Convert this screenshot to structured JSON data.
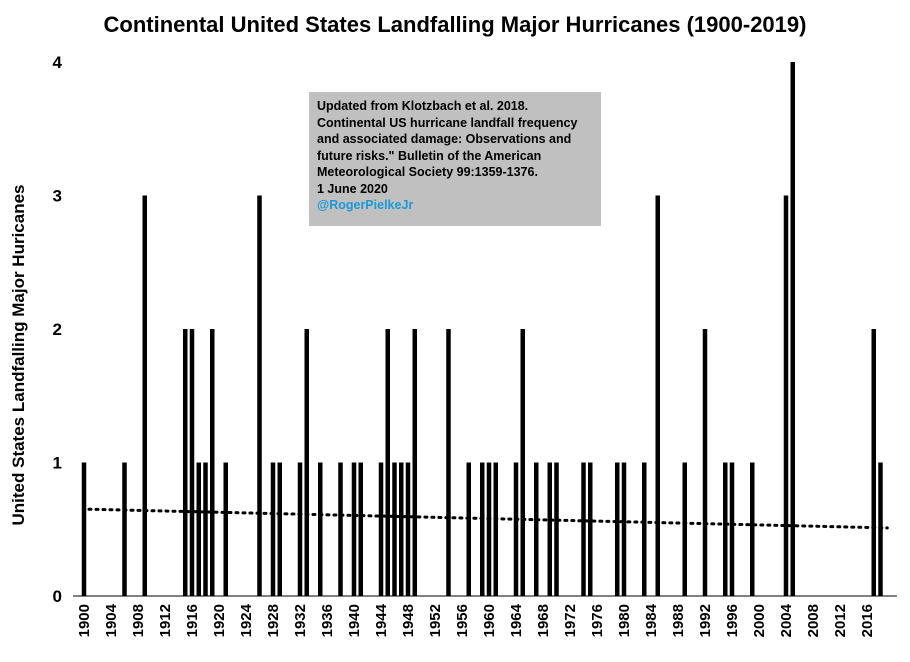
{
  "chart_data": {
    "type": "bar",
    "title": "Continental United States Landfalling Major Hurricanes (1900-2019)",
    "ylabel": "United States Landfalling Major Huricanes",
    "xlabel": "",
    "ylim": [
      0,
      4
    ],
    "yticks": [
      0,
      1,
      2,
      3,
      4
    ],
    "xlim": [
      1900,
      2019
    ],
    "xticks": [
      1900,
      1904,
      1908,
      1912,
      1916,
      1920,
      1924,
      1928,
      1932,
      1936,
      1940,
      1944,
      1948,
      1952,
      1956,
      1960,
      1964,
      1968,
      1972,
      1976,
      1980,
      1984,
      1988,
      1992,
      1996,
      2000,
      2004,
      2008,
      2012,
      2016
    ],
    "bar_color": "#000000",
    "trendline": {
      "style": "dotted",
      "x": [
        1900,
        2019
      ],
      "y": [
        0.65,
        0.51
      ]
    },
    "grid": false,
    "legend": "none",
    "annotation": {
      "lines": [
        "Updated from Klotzbach et al. 2018.",
        "Continental US hurricane landfall frequency",
        "and associated damage: Observations and",
        "future risks.\" Bulletin of the American",
        "Meteorological Society 99:1359-1376.",
        "1 June 2020"
      ],
      "handle": "@RogerPielkeJr",
      "handle_color": "#1a9bd7",
      "background": "#c0c0c0"
    },
    "points": [
      {
        "x": 1900,
        "y": 1
      },
      {
        "x": 1906,
        "y": 1
      },
      {
        "x": 1909,
        "y": 3
      },
      {
        "x": 1915,
        "y": 2
      },
      {
        "x": 1916,
        "y": 2
      },
      {
        "x": 1917,
        "y": 1
      },
      {
        "x": 1918,
        "y": 1
      },
      {
        "x": 1919,
        "y": 2
      },
      {
        "x": 1921,
        "y": 1
      },
      {
        "x": 1926,
        "y": 3
      },
      {
        "x": 1928,
        "y": 1
      },
      {
        "x": 1929,
        "y": 1
      },
      {
        "x": 1932,
        "y": 1
      },
      {
        "x": 1933,
        "y": 2
      },
      {
        "x": 1935,
        "y": 1
      },
      {
        "x": 1938,
        "y": 1
      },
      {
        "x": 1940,
        "y": 1
      },
      {
        "x": 1941,
        "y": 1
      },
      {
        "x": 1944,
        "y": 1
      },
      {
        "x": 1945,
        "y": 2
      },
      {
        "x": 1946,
        "y": 1
      },
      {
        "x": 1947,
        "y": 1
      },
      {
        "x": 1948,
        "y": 1
      },
      {
        "x": 1949,
        "y": 2
      },
      {
        "x": 1954,
        "y": 2
      },
      {
        "x": 1957,
        "y": 1
      },
      {
        "x": 1959,
        "y": 1
      },
      {
        "x": 1960,
        "y": 1
      },
      {
        "x": 1961,
        "y": 1
      },
      {
        "x": 1964,
        "y": 1
      },
      {
        "x": 1965,
        "y": 2
      },
      {
        "x": 1967,
        "y": 1
      },
      {
        "x": 1969,
        "y": 1
      },
      {
        "x": 1970,
        "y": 1
      },
      {
        "x": 1974,
        "y": 1
      },
      {
        "x": 1975,
        "y": 1
      },
      {
        "x": 1979,
        "y": 1
      },
      {
        "x": 1980,
        "y": 1
      },
      {
        "x": 1983,
        "y": 1
      },
      {
        "x": 1985,
        "y": 3
      },
      {
        "x": 1989,
        "y": 1
      },
      {
        "x": 1992,
        "y": 2
      },
      {
        "x": 1995,
        "y": 1
      },
      {
        "x": 1996,
        "y": 1
      },
      {
        "x": 1999,
        "y": 1
      },
      {
        "x": 2004,
        "y": 3
      },
      {
        "x": 2005,
        "y": 4
      },
      {
        "x": 2017,
        "y": 2
      },
      {
        "x": 2018,
        "y": 1
      }
    ]
  }
}
